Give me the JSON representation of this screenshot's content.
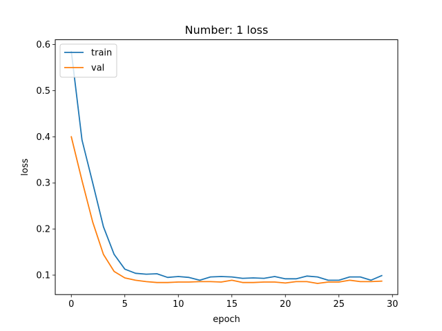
{
  "chart_data": {
    "type": "line",
    "title": "Number: 1 loss",
    "xlabel": "epoch",
    "ylabel": "loss",
    "xlim": [
      -1.5,
      30.5
    ],
    "ylim": [
      0.0578,
      0.6105
    ],
    "xticks": [
      0,
      5,
      10,
      15,
      20,
      25,
      30
    ],
    "yticks": [
      0.1,
      0.2,
      0.3,
      0.4,
      0.5,
      0.6
    ],
    "grid": false,
    "legend_position": "top-left",
    "x": [
      0,
      1,
      2,
      3,
      4,
      5,
      6,
      7,
      8,
      9,
      10,
      11,
      12,
      13,
      14,
      15,
      16,
      17,
      18,
      19,
      20,
      21,
      22,
      23,
      24,
      25,
      26,
      27,
      28,
      29
    ],
    "series": [
      {
        "name": "train",
        "color": "#1f77b4",
        "values": [
          0.585,
          0.393,
          0.3,
          0.205,
          0.145,
          0.113,
          0.104,
          0.102,
          0.103,
          0.095,
          0.097,
          0.095,
          0.089,
          0.096,
          0.097,
          0.096,
          0.093,
          0.094,
          0.093,
          0.097,
          0.092,
          0.092,
          0.098,
          0.096,
          0.089,
          0.089,
          0.096,
          0.096,
          0.089,
          0.099
        ]
      },
      {
        "name": "val",
        "color": "#ff7f0e",
        "values": [
          0.4,
          0.305,
          0.215,
          0.145,
          0.108,
          0.094,
          0.089,
          0.086,
          0.084,
          0.084,
          0.085,
          0.085,
          0.086,
          0.086,
          0.085,
          0.089,
          0.084,
          0.084,
          0.085,
          0.085,
          0.083,
          0.086,
          0.086,
          0.082,
          0.085,
          0.085,
          0.089,
          0.086,
          0.086,
          0.087
        ]
      }
    ]
  }
}
